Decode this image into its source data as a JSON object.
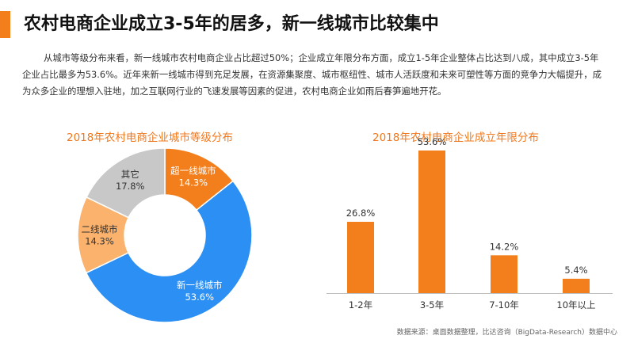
{
  "header": {
    "title": "农村电商企业成立3-5年的居多，新一线城市比较集中",
    "intro": "从城市等级分布来看，新一线城市农村电商企业占比超过50%；企业成立年限分布方面，成立1-5年企业整体占比达到八成，其中成立3-5年企业占比最多为53.6%。近年来新一线城市得到充足发展，在资源集聚度、城市枢纽性、城市人活跃度和未来可塑性等方面的竞争力大幅提升，成为众多企业的理想入驻地，加之互联网行业的飞速发展等因素的促进，农村电商企业如雨后春笋遍地开花。"
  },
  "colors": {
    "accent": "#f37e1c",
    "chart_title": "#f0781e",
    "light_orange": "#fbb26c",
    "blue": "#2b8ff3",
    "gray": "#c8c8c8"
  },
  "chart_data": [
    {
      "type": "pie",
      "title": "2018年农村电商企业城市等级分布",
      "donut": true,
      "slices": [
        {
          "label": "超一线城市",
          "value": 14.3,
          "value_label": "14.3%",
          "color": "#f37e1c"
        },
        {
          "label": "新一线城市",
          "value": 53.6,
          "value_label": "53.6%",
          "color": "#2b8ff3"
        },
        {
          "label": "二线城市",
          "value": 14.3,
          "value_label": "14.3%",
          "color": "#fbb26c"
        },
        {
          "label": "其它",
          "value": 17.8,
          "value_label": "17.8%",
          "color": "#c8c8c8"
        }
      ]
    },
    {
      "type": "bar",
      "title": "2018年农村电商企业成立年限分布",
      "categories": [
        "1-2年",
        "3-5年",
        "7-10年",
        "10年以上"
      ],
      "values": [
        26.8,
        53.6,
        14.2,
        5.4
      ],
      "value_labels": [
        "26.8%",
        "53.6%",
        "14.2%",
        "5.4%"
      ],
      "ylim": [
        0,
        53.6
      ],
      "color": "#f37e1c",
      "grid": false
    }
  ],
  "footer": {
    "source": "数据来源：桌面数据整理，比达咨询（BigData-Research）数据中心"
  }
}
